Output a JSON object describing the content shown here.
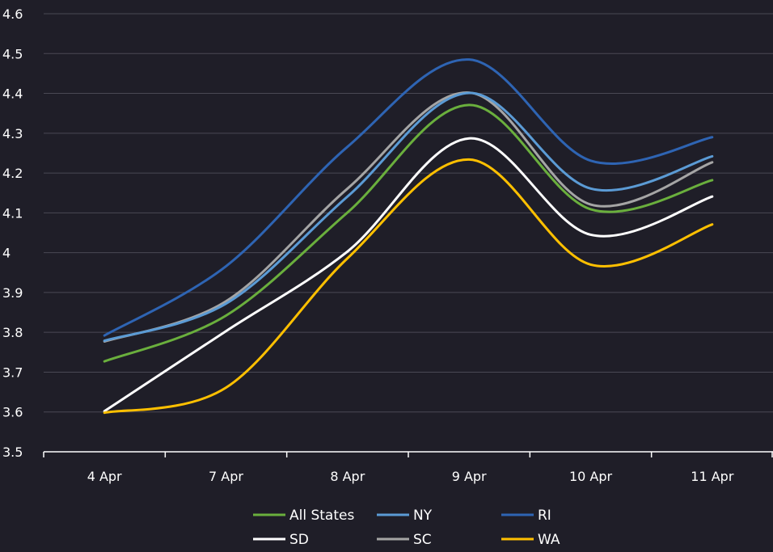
{
  "chart_data": {
    "type": "line",
    "title": "",
    "xlabel": "",
    "ylabel": "",
    "categories": [
      "4 Apr",
      "7 Apr",
      "8 Apr",
      "9 Apr",
      "10 Apr",
      "11 Apr"
    ],
    "ylim": [
      3.5,
      4.6
    ],
    "yticks": [
      "3.5",
      "3.6",
      "3.7",
      "3.8",
      "3.9",
      "4",
      "4.1",
      "4.2",
      "4.3",
      "4.4",
      "4.5",
      "4.6"
    ],
    "grid": true,
    "legend_position": "bottom",
    "smooth": true,
    "series": [
      {
        "name": "All States",
        "color": "#6aaf3d",
        "values": [
          3.727,
          3.842,
          4.101,
          4.371,
          4.109,
          4.182
        ]
      },
      {
        "name": "NY",
        "color": "#5b9bd5",
        "values": [
          3.779,
          3.872,
          4.141,
          4.401,
          4.161,
          4.242
        ]
      },
      {
        "name": "RI",
        "color": "#2e64b3",
        "values": [
          3.792,
          3.966,
          4.266,
          4.485,
          4.231,
          4.29
        ]
      },
      {
        "name": "SD",
        "color": "#ffffff",
        "values": [
          3.602,
          3.803,
          4.003,
          4.287,
          4.045,
          4.141
        ]
      },
      {
        "name": "SC",
        "color": "#a5a5a5",
        "values": [
          3.777,
          3.878,
          4.161,
          4.402,
          4.121,
          4.227
        ]
      },
      {
        "name": "WA",
        "color": "#ffc000",
        "values": [
          3.598,
          3.661,
          3.986,
          4.234,
          3.97,
          4.071
        ]
      }
    ]
  }
}
